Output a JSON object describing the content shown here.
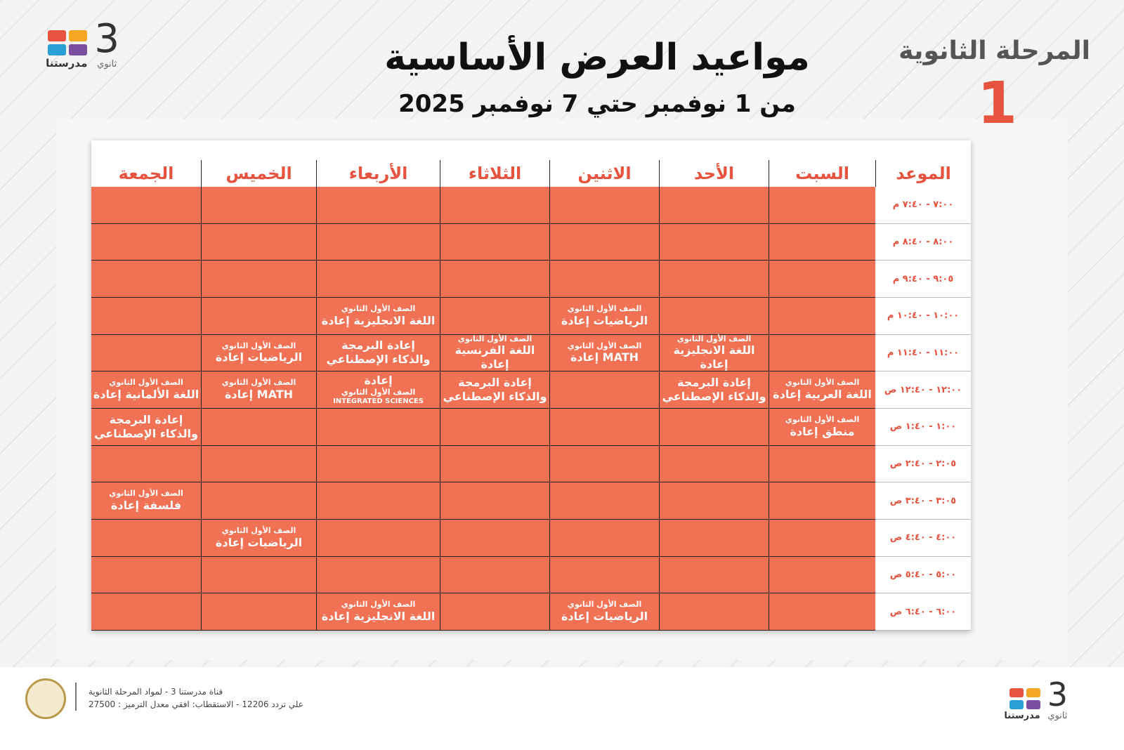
{
  "header": {
    "title": "مواعيد العرض الأساسية",
    "subtitle": "من 1 نوفمبر حتي 7 نوفمبر 2025",
    "stage": "المرحلة الثانوية",
    "stage_number": "1",
    "logo": {
      "number": "3",
      "label": "ثانوي",
      "brand": "مدرستنا"
    }
  },
  "table": {
    "columns": [
      "الموعد",
      "السبت",
      "الأحد",
      "الاثنين",
      "الثلاثاء",
      "الأربعاء",
      "الخميس",
      "الجمعة"
    ],
    "rows": [
      {
        "time": "٧:٠٠ - ٧:٤٠ م",
        "cells": [
          [],
          [],
          [],
          [],
          [],
          [],
          []
        ]
      },
      {
        "time": "٨:٠٠ - ٨:٤٠ م",
        "cells": [
          [],
          [],
          [],
          [],
          [],
          [],
          []
        ]
      },
      {
        "time": "٩:٠٥ - ٩:٤٠ م",
        "cells": [
          [],
          [],
          [],
          [],
          [],
          [],
          []
        ]
      },
      {
        "time": "١٠:٠٠ - ١٠:٤٠ م",
        "cells": [
          [],
          [],
          [
            "الصف الأول الثانوي",
            "الرياضيات إعادة"
          ],
          [],
          [
            "الصف الأول الثانوي",
            "اللغة الانجليزية إعادة"
          ],
          [],
          []
        ]
      },
      {
        "time": "١١:٠٠ - ١١:٤٠ م",
        "cells": [
          [],
          [
            "الصف الأول الثانوي",
            "اللغة الانجليزية إعادة"
          ],
          [
            "الصف الأول الثانوي",
            "MATH إعادة"
          ],
          [
            "الصف الأول الثانوي",
            "اللغة الفرنسية إعادة"
          ],
          [
            "إعادة البرمجة",
            "والذكاء الإصطناعي"
          ],
          [
            "الصف الأول الثانوي",
            "الرياضيات إعادة"
          ],
          []
        ]
      },
      {
        "time": "١٢:٠٠ - ١٢:٤٠ ص",
        "cells": [
          [
            "الصف الأول الثانوي",
            "اللغة العربية إعادة"
          ],
          [
            "إعادة البرمجة",
            "والذكاء الإصطناعي"
          ],
          [],
          [
            "إعادة البرمجة",
            "والذكاء الإصطناعي"
          ],
          [
            "إعادة",
            "الصف الأول الثانوي",
            "INTEGRATED SCIENCES"
          ],
          [
            "الصف الأول الثانوي",
            "MATH إعادة"
          ],
          [
            "الصف الأول الثانوي",
            "اللغة الألمانية إعادة"
          ]
        ]
      },
      {
        "time": "١:٠٠ - ١:٤٠ ص",
        "cells": [
          [
            "الصف الأول الثانوي",
            "منطق إعادة"
          ],
          [],
          [],
          [],
          [],
          [],
          [
            "إعادة البرمجة",
            "والذكاء الإصطناعي"
          ]
        ]
      },
      {
        "time": "٢:٠٥ - ٢:٤٠ ص",
        "cells": [
          [],
          [],
          [],
          [],
          [],
          [],
          []
        ]
      },
      {
        "time": "٣:٠٥ - ٣:٤٠ ص",
        "cells": [
          [],
          [],
          [],
          [],
          [],
          [],
          [
            "الصف الأول الثانوي",
            "فلسفة إعادة"
          ]
        ]
      },
      {
        "time": "٤:٠٠ - ٤:٤٠ ص",
        "cells": [
          [],
          [],
          [],
          [],
          [],
          [
            "الصف الأول الثانوي",
            "الرياضيات إعادة"
          ],
          []
        ]
      },
      {
        "time": "٥:٠٠ - ٥:٤٠ ص",
        "cells": [
          [],
          [],
          [],
          [],
          [],
          [],
          []
        ]
      },
      {
        "time": "٦:٠٠ - ٦:٤٠ ص",
        "cells": [
          [],
          [],
          [
            "الصف الأول الثانوي",
            "الرياضيات إعادة"
          ],
          [],
          [
            "الصف الأول الثانوي",
            "اللغة الانجليزية إعادة"
          ],
          [],
          []
        ]
      }
    ]
  },
  "footer": {
    "channel": "قناة مدرستنا 3 - لمواد المرحلة الثانوية",
    "frequency": "علي تردد 12206 - الاستقطاب: افقي معدل الترميز : 27500"
  }
}
